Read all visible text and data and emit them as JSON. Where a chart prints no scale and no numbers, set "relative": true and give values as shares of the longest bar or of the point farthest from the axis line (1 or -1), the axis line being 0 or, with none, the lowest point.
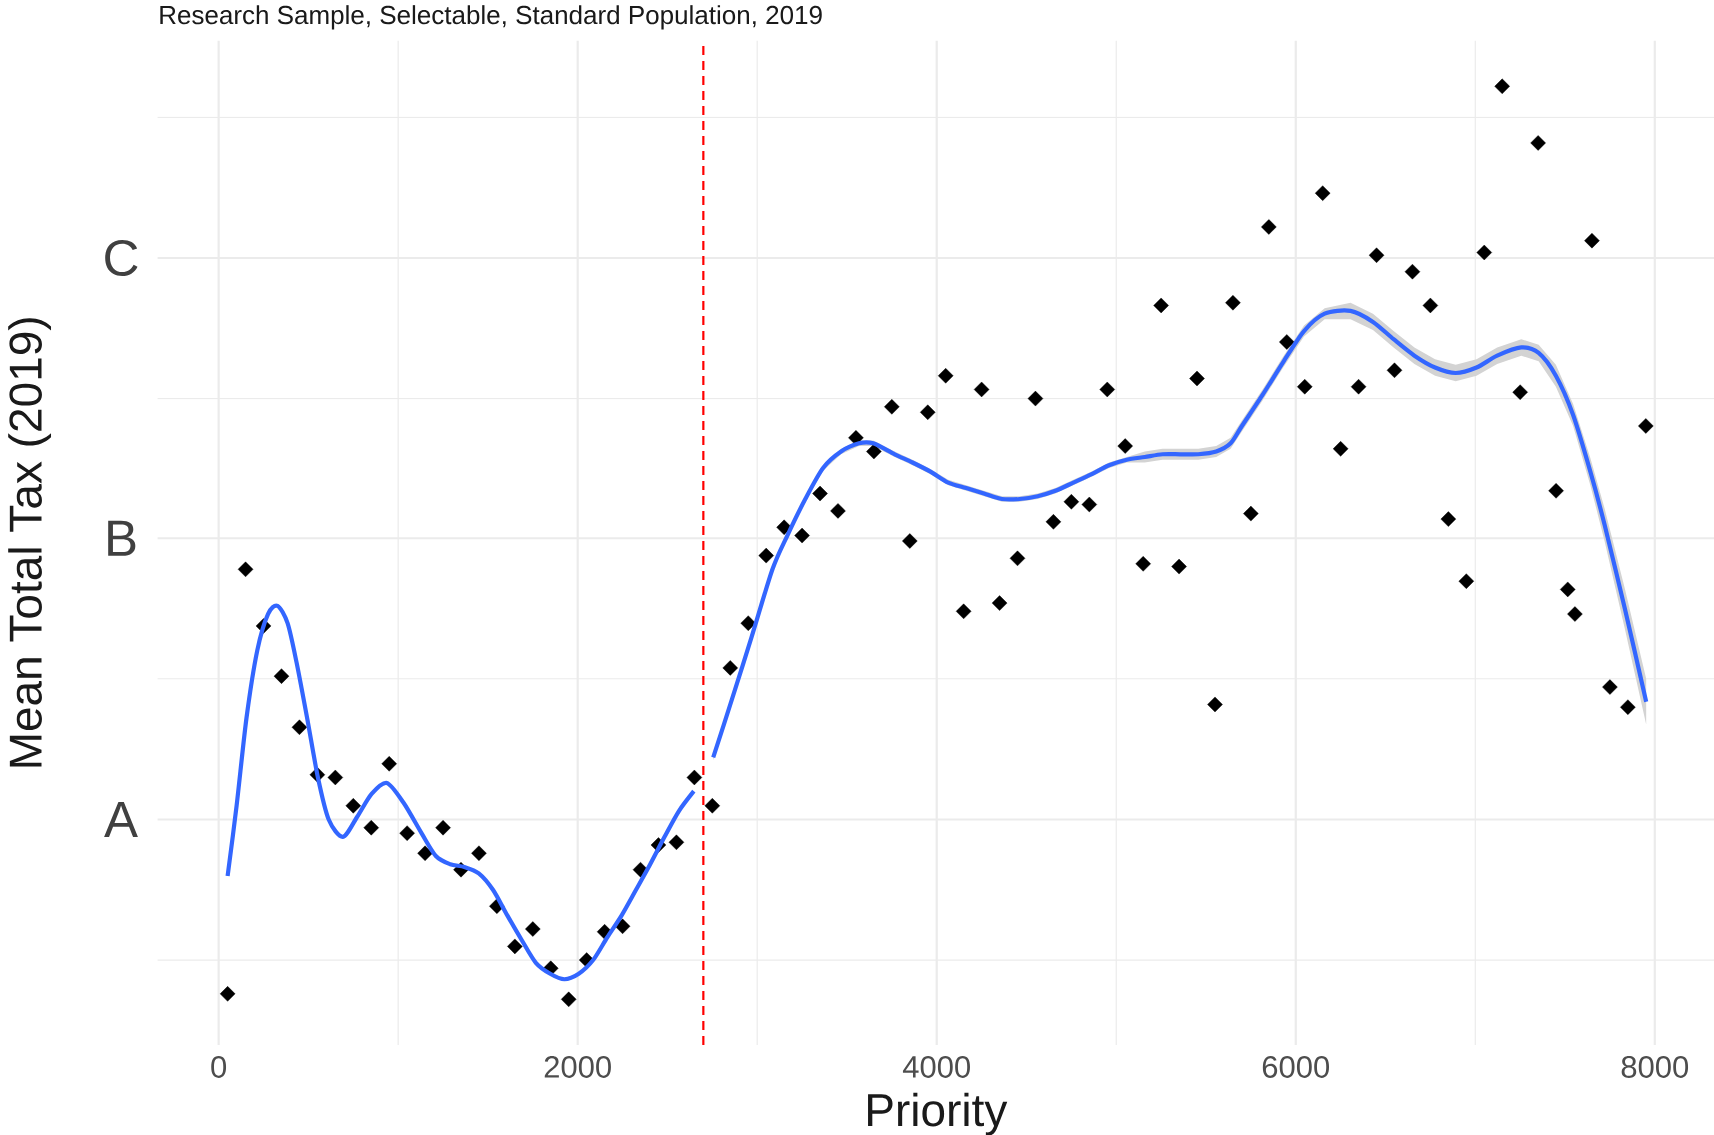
{
  "chart_data": {
    "type": "scatter",
    "title": "Research Sample, Selectable, Standard Population, 2019",
    "xlabel": "Priority",
    "ylabel": "Mean Total Tax (2019)",
    "relative": true,
    "xlim": [
      -340,
      8330
    ],
    "xticks": [
      0,
      {
        "value": 1000,
        "label": null
      },
      2000,
      {
        "value": 3000,
        "label": null
      },
      4000,
      {
        "value": 5000,
        "label": null
      },
      6000,
      {
        "value": 7000,
        "label": null
      },
      8000
    ],
    "grid": "x",
    "ref_lines": [
      {
        "axis": "y",
        "value": 0.043,
        "color": "#ebebeb"
      },
      {
        "axis": "y",
        "value": 0.197,
        "label": "A",
        "color": "#ebebeb"
      },
      {
        "axis": "y",
        "value": 0.351,
        "color": "#ebebeb"
      },
      {
        "axis": "y",
        "value": 0.505,
        "label": "B",
        "color": "#ebebeb"
      },
      {
        "axis": "y",
        "value": 0.658,
        "color": "#ebebeb"
      },
      {
        "axis": "y",
        "value": 0.812,
        "label": "C",
        "color": "#ebebeb"
      },
      {
        "axis": "y",
        "value": 0.966,
        "color": "#ebebeb"
      },
      {
        "axis": "x",
        "value": 2700,
        "color": "#ff0000",
        "line_style": "dashed"
      }
    ],
    "series": [
      {
        "color": "#000000",
        "marker": "diamond",
        "x": [
          50,
          150,
          250,
          350,
          450,
          550,
          650,
          750,
          850,
          950,
          1050,
          1150,
          1250,
          1350,
          1450,
          1550,
          1650,
          1750,
          1850,
          1950,
          2050,
          2150,
          2250,
          2350,
          2450,
          2550,
          2650,
          2750,
          2850,
          2950,
          3050,
          3150,
          3250,
          3350,
          3450,
          3550,
          3650,
          3750,
          3850,
          3950,
          4050,
          4150,
          4250,
          4350,
          4450,
          4550,
          4650,
          4750,
          4850,
          4950,
          5050,
          5150,
          5250,
          5350,
          5450,
          5550,
          5650,
          5750,
          5850,
          5950,
          6050,
          6150,
          6250,
          6350,
          6450,
          6550,
          6650,
          6750,
          6850,
          6950,
          7050,
          7150,
          7250,
          7350,
          7450,
          7515,
          7555,
          7650,
          7750,
          7850,
          7950
        ],
        "values": [
          0.006,
          0.471,
          0.409,
          0.354,
          0.298,
          0.246,
          0.243,
          0.212,
          0.188,
          0.258,
          0.182,
          0.16,
          0.188,
          0.142,
          0.16,
          0.102,
          0.058,
          0.077,
          0.034,
          0,
          0.043,
          0.074,
          0.08,
          0.142,
          0.169,
          0.172,
          0.243,
          0.212,
          0.363,
          0.412,
          0.486,
          0.517,
          0.508,
          0.554,
          0.535,
          0.615,
          0.6,
          0.649,
          0.502,
          0.643,
          0.683,
          0.425,
          0.668,
          0.434,
          0.483,
          0.658,
          0.523,
          0.545,
          0.542,
          0.668,
          0.606,
          0.477,
          0.76,
          0.474,
          0.68,
          0.323,
          0.763,
          0.532,
          0.846,
          0.72,
          0.671,
          0.883,
          0.603,
          0.671,
          0.815,
          0.689,
          0.797,
          0.76,
          0.526,
          0.458,
          0.818,
          1,
          0.665,
          0.938,
          0.557,
          0.449,
          0.422,
          0.831,
          0.342,
          0.32,
          0.628
        ]
      },
      {
        "type": "line",
        "color": "#3366ff",
        "x": [
          50,
          100,
          155,
          215,
          275,
          328,
          384,
          434,
          493,
          553,
          613,
          692,
          772,
          852,
          937,
          1031,
          1130,
          1210,
          1290,
          1369,
          1449,
          1528,
          1608,
          1688,
          1767,
          1847,
          1926,
          2006,
          2086,
          2165,
          2245,
          2325,
          2404,
          2484,
          2563,
          2647
        ],
        "values": [
          0.135,
          0.212,
          0.308,
          0.382,
          0.422,
          0.431,
          0.412,
          0.369,
          0.308,
          0.243,
          0.197,
          0.178,
          0.2,
          0.225,
          0.237,
          0.215,
          0.182,
          0.157,
          0.148,
          0.145,
          0.138,
          0.12,
          0.092,
          0.065,
          0.04,
          0.028,
          0.022,
          0.028,
          0.043,
          0.068,
          0.092,
          0.12,
          0.148,
          0.178,
          0.206,
          0.228
        ]
      },
      {
        "type": "line",
        "color": "#3366ff",
        "x": [
          2755,
          2860,
          2969,
          3085,
          3168,
          3268,
          3367,
          3467,
          3567,
          3646,
          3766,
          3865,
          3965,
          4064,
          4164,
          4263,
          4363,
          4462,
          4562,
          4661,
          4761,
          4860,
          4960,
          5059,
          5159,
          5258,
          5358,
          5457,
          5557,
          5637,
          5700,
          5815,
          5930,
          6046,
          6161,
          6305,
          6430,
          6545,
          6661,
          6776,
          6891,
          7007,
          7122,
          7256,
          7353,
          7449,
          7545,
          7641,
          7720,
          7833,
          7952
        ],
        "values": [
          0.265,
          0.329,
          0.397,
          0.471,
          0.508,
          0.548,
          0.582,
          0.6,
          0.609,
          0.609,
          0.597,
          0.588,
          0.578,
          0.566,
          0.56,
          0.554,
          0.548,
          0.548,
          0.551,
          0.557,
          0.566,
          0.575,
          0.585,
          0.591,
          0.594,
          0.597,
          0.597,
          0.597,
          0.6,
          0.609,
          0.628,
          0.662,
          0.698,
          0.732,
          0.751,
          0.754,
          0.742,
          0.723,
          0.705,
          0.692,
          0.686,
          0.692,
          0.705,
          0.714,
          0.708,
          0.683,
          0.64,
          0.578,
          0.52,
          0.428,
          0.326
        ],
        "lower": [
          0.262,
          0.326,
          0.394,
          0.468,
          0.505,
          0.545,
          0.579,
          0.597,
          0.606,
          0.606,
          0.594,
          0.585,
          0.575,
          0.563,
          0.557,
          0.551,
          0.545,
          0.545,
          0.548,
          0.554,
          0.563,
          0.572,
          0.582,
          0.588,
          0.588,
          0.591,
          0.591,
          0.591,
          0.594,
          0.603,
          0.622,
          0.656,
          0.692,
          0.726,
          0.745,
          0.745,
          0.733,
          0.714,
          0.696,
          0.683,
          0.677,
          0.683,
          0.696,
          0.705,
          0.699,
          0.671,
          0.628,
          0.563,
          0.502,
          0.406,
          0.301
        ],
        "upper": [
          0.268,
          0.332,
          0.4,
          0.474,
          0.511,
          0.551,
          0.585,
          0.603,
          0.612,
          0.612,
          0.6,
          0.591,
          0.581,
          0.569,
          0.563,
          0.557,
          0.551,
          0.551,
          0.554,
          0.56,
          0.569,
          0.578,
          0.588,
          0.594,
          0.6,
          0.603,
          0.603,
          0.603,
          0.606,
          0.615,
          0.634,
          0.668,
          0.704,
          0.738,
          0.757,
          0.763,
          0.751,
          0.732,
          0.714,
          0.701,
          0.695,
          0.701,
          0.714,
          0.723,
          0.717,
          0.695,
          0.652,
          0.593,
          0.538,
          0.45,
          0.351
        ]
      }
    ]
  }
}
